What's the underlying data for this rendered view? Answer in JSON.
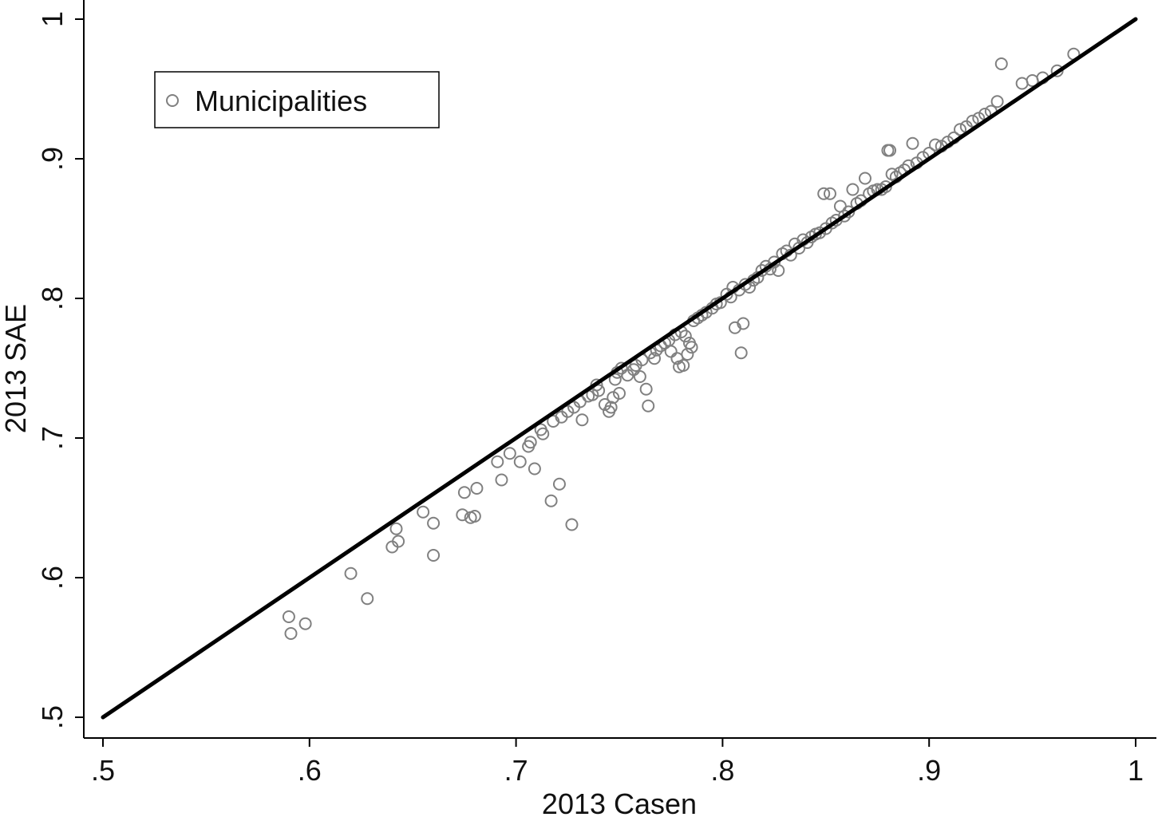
{
  "chart_data": {
    "type": "scatter",
    "xlabel": "2013 Casen",
    "ylabel": "2013 SAE",
    "xlim": [
      0.5,
      1.0
    ],
    "ylim": [
      0.5,
      1.0
    ],
    "xticks": [
      ".5",
      ".6",
      ".7",
      ".8",
      ".9",
      "1"
    ],
    "yticks": [
      ".5",
      ".6",
      ".7",
      ".8",
      ".9",
      "1"
    ],
    "xtick_values": [
      0.5,
      0.6,
      0.7,
      0.8,
      0.9,
      1.0
    ],
    "ytick_values": [
      0.5,
      0.6,
      0.7,
      0.8,
      0.9,
      1.0
    ],
    "grid": false,
    "legend": {
      "position": "top-left",
      "entries": [
        "Municipalities"
      ]
    },
    "series": [
      {
        "name": "Municipalities",
        "marker": "hollow-circle",
        "color": "#808080",
        "points": [
          [
            0.59,
            0.572
          ],
          [
            0.591,
            0.56
          ],
          [
            0.598,
            0.567
          ],
          [
            0.62,
            0.603
          ],
          [
            0.628,
            0.585
          ],
          [
            0.64,
            0.622
          ],
          [
            0.642,
            0.635
          ],
          [
            0.643,
            0.626
          ],
          [
            0.655,
            0.647
          ],
          [
            0.66,
            0.639
          ],
          [
            0.66,
            0.616
          ],
          [
            0.674,
            0.645
          ],
          [
            0.675,
            0.661
          ],
          [
            0.678,
            0.643
          ],
          [
            0.68,
            0.644
          ],
          [
            0.681,
            0.664
          ],
          [
            0.691,
            0.683
          ],
          [
            0.693,
            0.67
          ],
          [
            0.697,
            0.689
          ],
          [
            0.702,
            0.683
          ],
          [
            0.706,
            0.694
          ],
          [
            0.707,
            0.697
          ],
          [
            0.709,
            0.678
          ],
          [
            0.712,
            0.706
          ],
          [
            0.713,
            0.703
          ],
          [
            0.717,
            0.655
          ],
          [
            0.718,
            0.712
          ],
          [
            0.721,
            0.667
          ],
          [
            0.722,
            0.715
          ],
          [
            0.725,
            0.719
          ],
          [
            0.727,
            0.638
          ],
          [
            0.728,
            0.722
          ],
          [
            0.731,
            0.726
          ],
          [
            0.732,
            0.713
          ],
          [
            0.735,
            0.73
          ],
          [
            0.737,
            0.731
          ],
          [
            0.739,
            0.738
          ],
          [
            0.74,
            0.734
          ],
          [
            0.743,
            0.724
          ],
          [
            0.745,
            0.719
          ],
          [
            0.746,
            0.722
          ],
          [
            0.747,
            0.729
          ],
          [
            0.748,
            0.742
          ],
          [
            0.749,
            0.747
          ],
          [
            0.75,
            0.732
          ],
          [
            0.751,
            0.75
          ],
          [
            0.754,
            0.745
          ],
          [
            0.757,
            0.749
          ],
          [
            0.758,
            0.752
          ],
          [
            0.76,
            0.744
          ],
          [
            0.761,
            0.756
          ],
          [
            0.763,
            0.735
          ],
          [
            0.764,
            0.723
          ],
          [
            0.765,
            0.761
          ],
          [
            0.767,
            0.757
          ],
          [
            0.768,
            0.763
          ],
          [
            0.77,
            0.766
          ],
          [
            0.772,
            0.768
          ],
          [
            0.774,
            0.77
          ],
          [
            0.775,
            0.762
          ],
          [
            0.777,
            0.774
          ],
          [
            0.778,
            0.757
          ],
          [
            0.779,
            0.751
          ],
          [
            0.78,
            0.776
          ],
          [
            0.781,
            0.752
          ],
          [
            0.782,
            0.773
          ],
          [
            0.783,
            0.76
          ],
          [
            0.784,
            0.768
          ],
          [
            0.785,
            0.765
          ],
          [
            0.786,
            0.784
          ],
          [
            0.788,
            0.786
          ],
          [
            0.79,
            0.788
          ],
          [
            0.792,
            0.79
          ],
          [
            0.795,
            0.793
          ],
          [
            0.797,
            0.796
          ],
          [
            0.799,
            0.797
          ],
          [
            0.802,
            0.803
          ],
          [
            0.804,
            0.801
          ],
          [
            0.805,
            0.808
          ],
          [
            0.806,
            0.779
          ],
          [
            0.808,
            0.806
          ],
          [
            0.809,
            0.761
          ],
          [
            0.81,
            0.782
          ],
          [
            0.811,
            0.81
          ],
          [
            0.813,
            0.808
          ],
          [
            0.815,
            0.813
          ],
          [
            0.817,
            0.815
          ],
          [
            0.819,
            0.82
          ],
          [
            0.821,
            0.823
          ],
          [
            0.823,
            0.821
          ],
          [
            0.825,
            0.826
          ],
          [
            0.827,
            0.82
          ],
          [
            0.829,
            0.832
          ],
          [
            0.831,
            0.834
          ],
          [
            0.833,
            0.831
          ],
          [
            0.835,
            0.839
          ],
          [
            0.837,
            0.836
          ],
          [
            0.839,
            0.842
          ],
          [
            0.841,
            0.84
          ],
          [
            0.843,
            0.844
          ],
          [
            0.845,
            0.846
          ],
          [
            0.847,
            0.847
          ],
          [
            0.849,
            0.875
          ],
          [
            0.85,
            0.85
          ],
          [
            0.852,
            0.875
          ],
          [
            0.853,
            0.854
          ],
          [
            0.855,
            0.856
          ],
          [
            0.857,
            0.866
          ],
          [
            0.859,
            0.859
          ],
          [
            0.861,
            0.862
          ],
          [
            0.863,
            0.878
          ],
          [
            0.865,
            0.868
          ],
          [
            0.867,
            0.87
          ],
          [
            0.869,
            0.886
          ],
          [
            0.871,
            0.875
          ],
          [
            0.873,
            0.877
          ],
          [
            0.875,
            0.878
          ],
          [
            0.877,
            0.878
          ],
          [
            0.879,
            0.88
          ],
          [
            0.88,
            0.906
          ],
          [
            0.881,
            0.906
          ],
          [
            0.882,
            0.889
          ],
          [
            0.884,
            0.887
          ],
          [
            0.886,
            0.89
          ],
          [
            0.888,
            0.892
          ],
          [
            0.89,
            0.895
          ],
          [
            0.892,
            0.911
          ],
          [
            0.894,
            0.897
          ],
          [
            0.897,
            0.901
          ],
          [
            0.9,
            0.904
          ],
          [
            0.903,
            0.91
          ],
          [
            0.906,
            0.909
          ],
          [
            0.909,
            0.912
          ],
          [
            0.912,
            0.915
          ],
          [
            0.915,
            0.921
          ],
          [
            0.918,
            0.923
          ],
          [
            0.921,
            0.927
          ],
          [
            0.924,
            0.929
          ],
          [
            0.927,
            0.932
          ],
          [
            0.93,
            0.934
          ],
          [
            0.933,
            0.941
          ],
          [
            0.935,
            0.968
          ],
          [
            0.945,
            0.954
          ],
          [
            0.95,
            0.956
          ],
          [
            0.955,
            0.958
          ],
          [
            0.962,
            0.963
          ],
          [
            0.97,
            0.975
          ]
        ]
      },
      {
        "name": "",
        "type": "line",
        "color": "#000000",
        "points": [
          [
            0.5,
            0.5
          ],
          [
            1.0,
            1.0
          ]
        ]
      }
    ]
  }
}
